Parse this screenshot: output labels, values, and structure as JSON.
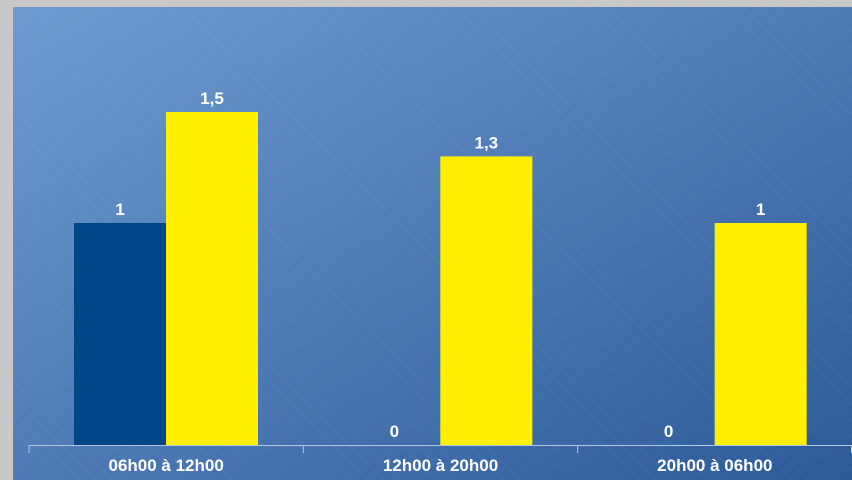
{
  "chart_data": {
    "type": "bar",
    "categories": [
      "06h00 à 12h00",
      "12h00 à 20h00",
      "20h00 à 06h00"
    ],
    "series": [
      {
        "values": [
          1,
          0,
          0
        ],
        "color": "#004586"
      },
      {
        "values": [
          1.5,
          1.3,
          1
        ],
        "color": "#ffef00"
      }
    ],
    "value_labels": [
      [
        "1",
        "0",
        "0"
      ],
      [
        "1,5",
        "1,3",
        "1"
      ]
    ],
    "ylim": [
      0,
      2
    ],
    "grid": false,
    "legend": "none",
    "background_colors": [
      "#6f9bd1",
      "#2c5a99"
    ]
  }
}
